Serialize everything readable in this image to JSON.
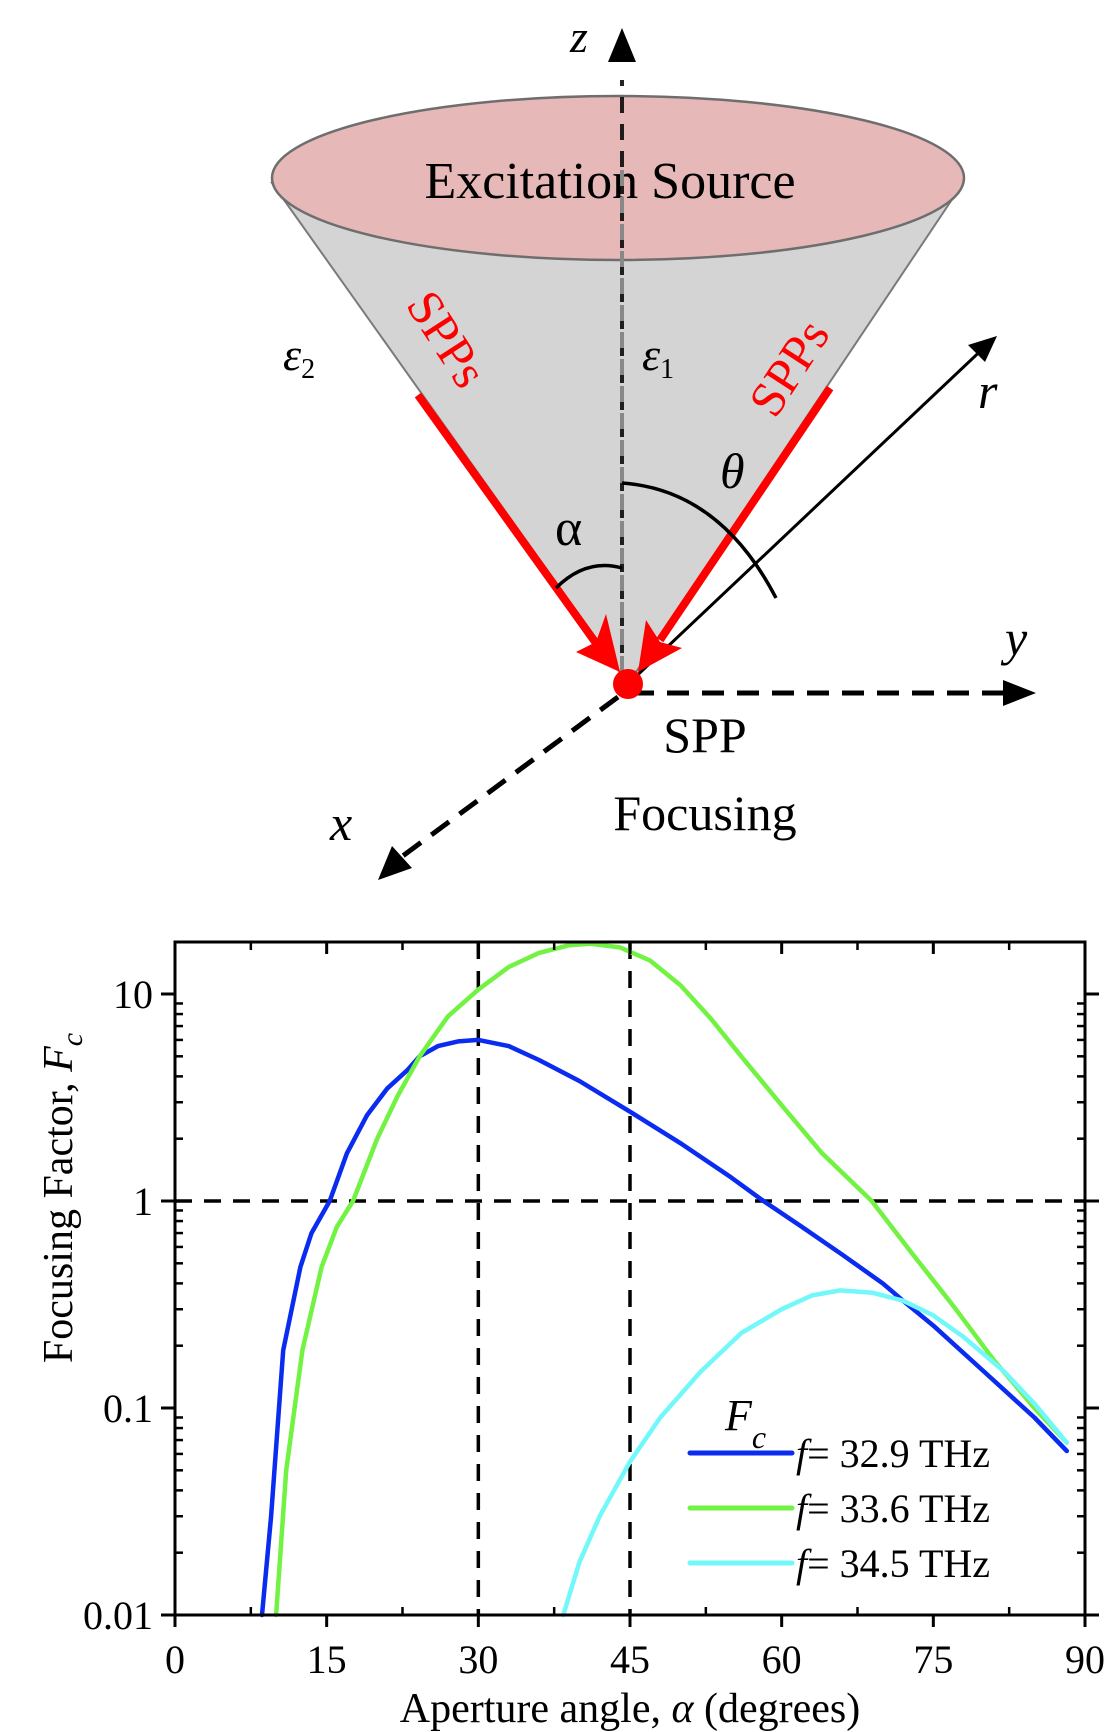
{
  "diagram": {
    "source_label": "Excitation Source",
    "spp_left_label": "SPPs",
    "spp_right_label": "SPPs",
    "epsilon_outer": "ε",
    "epsilon_outer_sub": "2",
    "epsilon_inner": "ε",
    "epsilon_inner_sub": "1",
    "alpha_label": "α",
    "theta_label": "θ",
    "axis_z": "z",
    "axis_r": "r",
    "axis_y": "y",
    "axis_x": "x",
    "focus_line1": "SPP",
    "focus_line2": "Focusing",
    "colors": {
      "source_fill": "#e6b8b7",
      "cone_fill": "#d4d4d4",
      "spp": "#ff0000"
    }
  },
  "chart_data": {
    "type": "line",
    "title": "",
    "xlabel": "Aperture angle, α (degrees)",
    "xlabel_prefix": "Aperture angle, ",
    "xlabel_symbol": "α",
    "xlabel_suffix": " (degrees)",
    "ylabel": "Focusing Factor, Fc",
    "ylabel_prefix": "Focusing Factor, ",
    "ylabel_symbol": "F",
    "ylabel_sub": "c",
    "xlim": [
      0,
      90
    ],
    "ylim": [
      0.01,
      18
    ],
    "yscale": "log",
    "xticks": [
      0,
      15,
      30,
      45,
      60,
      75,
      90
    ],
    "xtick_labels": [
      "0",
      "15",
      "30",
      "45",
      "60",
      "75",
      "90"
    ],
    "yticks": [
      0.01,
      0.1,
      1,
      10
    ],
    "ytick_labels": [
      "0.01",
      "0.1",
      "1",
      "10"
    ],
    "grid": false,
    "reference_lines": [
      {
        "orientation": "vertical",
        "x": 30,
        "style": "dashed"
      },
      {
        "orientation": "vertical",
        "x": 45,
        "style": "dashed"
      },
      {
        "orientation": "horizontal",
        "y": 1,
        "style": "dashed"
      }
    ],
    "legend": {
      "title": "F",
      "title_sub": "c",
      "position": "lower right",
      "entries": [
        {
          "label": "f = 32.9 THz",
          "f": "f",
          "rest": "= 32.9 THz",
          "color": "#0a2bf0"
        },
        {
          "label": "f = 33.6 THz",
          "f": "f",
          "rest": "= 33.6 THz",
          "color": "#72f242"
        },
        {
          "label": "f = 34.5 THz",
          "f": "f",
          "rest": "= 34.5 THz",
          "color": "#72f8fa"
        }
      ]
    },
    "series": [
      {
        "name": "f = 32.9 THz",
        "color": "#0a2bf0",
        "x": [
          8.6,
          9.5,
          10.7,
          12.4,
          13.5,
          15.3,
          17,
          19,
          21,
          23,
          24.2,
          26,
          28,
          30,
          33,
          36,
          40,
          45,
          50,
          55,
          58.2,
          62,
          66,
          70,
          72,
          75,
          80,
          85,
          88.2
        ],
        "y": [
          0.01,
          0.03,
          0.19,
          0.48,
          0.7,
          1.0,
          1.7,
          2.6,
          3.5,
          4.3,
          5.0,
          5.6,
          5.9,
          6.0,
          5.6,
          4.8,
          3.8,
          2.7,
          1.9,
          1.3,
          1.0,
          0.75,
          0.55,
          0.4,
          0.33,
          0.25,
          0.15,
          0.09,
          0.062
        ]
      },
      {
        "name": "f = 33.6 THz",
        "color": "#72f242",
        "x": [
          10.0,
          11,
          12.6,
          14.5,
          16,
          17.6,
          20,
          22,
          24.2,
          27,
          30,
          33,
          36,
          39,
          41,
          44,
          47,
          50,
          53,
          56,
          60,
          64,
          68.9,
          73,
          77,
          81,
          85,
          88.2
        ],
        "y": [
          0.01,
          0.05,
          0.19,
          0.48,
          0.75,
          1.0,
          2.0,
          3.2,
          5.0,
          7.8,
          10.5,
          13.5,
          15.8,
          17.2,
          17.5,
          16.8,
          14.5,
          11,
          7.6,
          5.0,
          2.9,
          1.7,
          1.0,
          0.55,
          0.31,
          0.17,
          0.1,
          0.068
        ]
      },
      {
        "name": "f = 34.5 THz",
        "color": "#72f8fa",
        "x": [
          38.4,
          40,
          42,
          45,
          48,
          52,
          56,
          60,
          63,
          65.8,
          69,
          72,
          75,
          78,
          82,
          85,
          88.2
        ],
        "y": [
          0.01,
          0.018,
          0.03,
          0.055,
          0.09,
          0.15,
          0.23,
          0.3,
          0.35,
          0.37,
          0.36,
          0.33,
          0.28,
          0.22,
          0.15,
          0.105,
          0.068
        ]
      }
    ]
  }
}
